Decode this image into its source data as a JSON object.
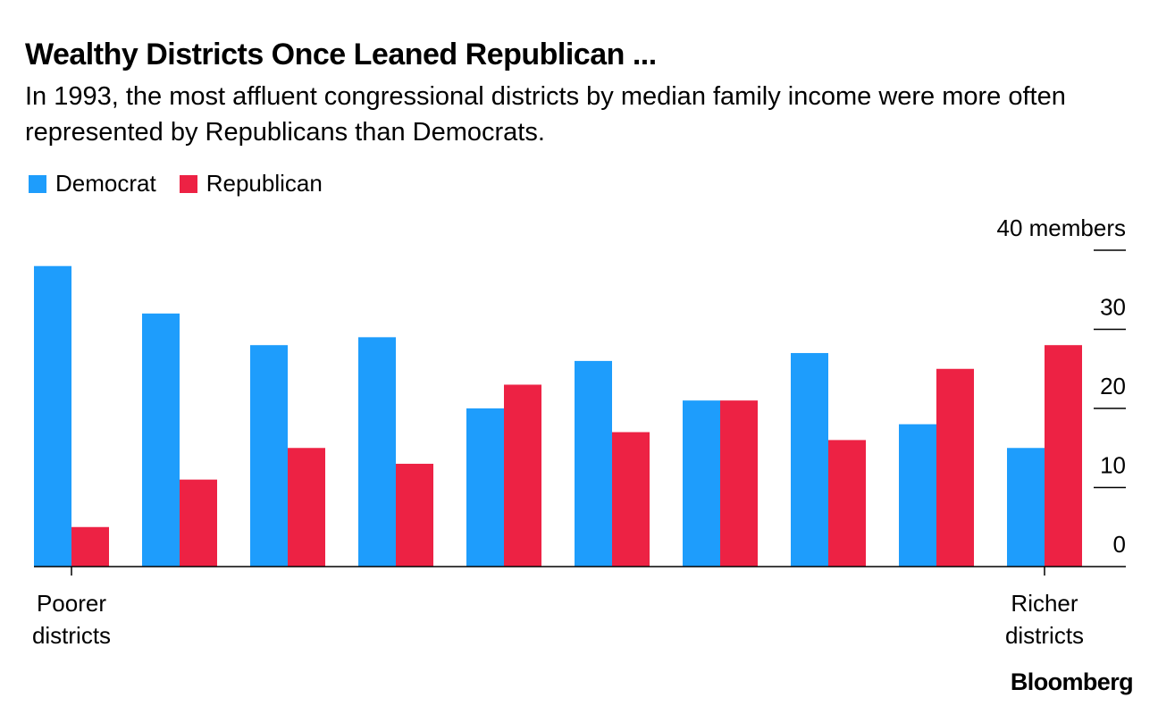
{
  "header": {
    "title": "Wealthy Districts Once Leaned Republican ...",
    "subtitle": "In 1993, the most affluent congressional districts by median family income were more often represented by Republicans than Democrats."
  },
  "legend": {
    "items": [
      {
        "label": "Democrat",
        "color": "#1e9dfc"
      },
      {
        "label": "Republican",
        "color": "#ed2244"
      }
    ]
  },
  "footer": {
    "brand": "Bloomberg"
  },
  "chart_data": {
    "type": "bar",
    "categories": [
      "1",
      "2",
      "3",
      "4",
      "5",
      "6",
      "7",
      "8",
      "9",
      "10"
    ],
    "series": [
      {
        "name": "Democrat",
        "values": [
          38,
          32,
          28,
          29,
          20,
          26,
          21,
          27,
          18,
          15
        ]
      },
      {
        "name": "Republican",
        "values": [
          5,
          11,
          15,
          13,
          23,
          17,
          21,
          16,
          25,
          28
        ]
      }
    ],
    "colors": [
      "#1e9dfc",
      "#ed2244"
    ],
    "ylim": [
      0,
      40
    ],
    "yticks": [
      0,
      10,
      20,
      30,
      40
    ],
    "ytick_labels": [
      "0",
      "10",
      "20",
      "30",
      "40 members"
    ],
    "x_end_labels": {
      "left": "Poorer\ndistricts",
      "right": "Richer\ndistricts"
    },
    "axis_position": "right",
    "grid": false,
    "legend_position": "top-left"
  }
}
